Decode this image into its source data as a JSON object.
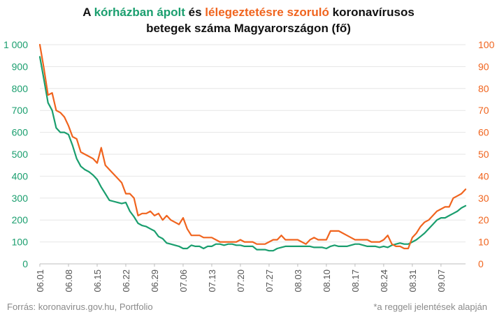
{
  "title": {
    "part1": "A ",
    "green": "kórházban ápolt",
    "part2": " és ",
    "orange": "lélegeztetésre szoruló",
    "part3": " koronavírusos",
    "line2": "betegek száma Magyarországon  (fő)"
  },
  "source": "Forrás: koronavirus.gov.hu, Portfolio",
  "note": "*a reggeli jelentések alapján",
  "colors": {
    "green": "#1a9e6e",
    "orange": "#f0641e",
    "grid": "#e6e6e6",
    "axis": "#bdbdbd"
  },
  "chart_data": {
    "type": "line",
    "x": [
      "06.01",
      "06.02",
      "06.03",
      "06.04",
      "06.05",
      "06.06",
      "06.07",
      "06.08",
      "06.09",
      "06.10",
      "06.11",
      "06.12",
      "06.13",
      "06.14",
      "06.15",
      "06.16",
      "06.17",
      "06.18",
      "06.19",
      "06.20",
      "06.21",
      "06.22",
      "06.23",
      "06.24",
      "06.25",
      "06.26",
      "06.27",
      "06.28",
      "06.29",
      "06.30",
      "07.01",
      "07.02",
      "07.03",
      "07.04",
      "07.05",
      "07.06",
      "07.07",
      "07.08",
      "07.09",
      "07.10",
      "07.11",
      "07.12",
      "07.13",
      "07.14",
      "07.15",
      "07.16",
      "07.17",
      "07.18",
      "07.19",
      "07.20",
      "07.21",
      "07.22",
      "07.23",
      "07.24",
      "07.25",
      "07.26",
      "07.27",
      "07.28",
      "07.29",
      "07.30",
      "07.31",
      "08.01",
      "08.02",
      "08.03",
      "08.04",
      "08.05",
      "08.06",
      "08.07",
      "08.08",
      "08.09",
      "08.10",
      "08.11",
      "08.12",
      "08.13",
      "08.14",
      "08.15",
      "08.16",
      "08.17",
      "08.18",
      "08.19",
      "08.20",
      "08.21",
      "08.22",
      "08.23",
      "08.24",
      "08.25",
      "08.26",
      "08.27",
      "08.28",
      "08.29",
      "08.30",
      "08.31",
      "09.01",
      "09.02",
      "09.03",
      "09.04",
      "09.05",
      "09.06",
      "09.07",
      "09.08",
      "09.09",
      "09.10",
      "09.11",
      "09.12",
      "09.13"
    ],
    "xticks": [
      "06.01",
      "06.08",
      "06.15",
      "06.22",
      "06.29",
      "07.06",
      "07.13",
      "07.20",
      "07.27",
      "08.03",
      "08.10",
      "08.17",
      "08.24",
      "08.31",
      "09.07"
    ],
    "series": [
      {
        "axis": "left",
        "color": "#1a9e6e",
        "values": [
          945,
          840,
          735,
          700,
          620,
          600,
          600,
          590,
          540,
          480,
          445,
          430,
          420,
          405,
          385,
          350,
          320,
          290,
          285,
          280,
          275,
          280,
          240,
          215,
          185,
          175,
          170,
          160,
          150,
          125,
          115,
          95,
          90,
          85,
          80,
          70,
          70,
          85,
          80,
          80,
          70,
          80,
          80,
          90,
          90,
          85,
          90,
          90,
          85,
          85,
          80,
          80,
          80,
          65,
          65,
          65,
          60,
          60,
          70,
          75,
          80,
          80,
          80,
          80,
          80,
          80,
          80,
          75,
          75,
          75,
          70,
          80,
          85,
          80,
          80,
          80,
          85,
          90,
          90,
          85,
          80,
          80,
          80,
          75,
          80,
          75,
          85,
          90,
          95,
          90,
          90,
          100,
          110,
          125,
          140,
          160,
          180,
          200,
          210,
          210,
          220,
          230,
          240,
          255,
          265
        ]
      },
      {
        "axis": "right",
        "color": "#f0641e",
        "values": [
          100,
          89,
          77,
          78,
          70,
          69,
          67,
          63,
          58,
          57,
          51,
          50,
          49,
          48,
          46,
          53,
          45,
          43,
          41,
          39,
          37,
          32,
          32,
          30,
          22,
          23,
          23,
          24,
          22,
          23,
          20,
          22,
          20,
          19,
          18,
          21,
          16,
          13,
          13,
          13,
          12,
          12,
          12,
          11,
          10,
          10,
          10,
          10,
          10,
          11,
          10,
          10,
          10,
          9,
          9,
          9,
          10,
          11,
          11,
          13,
          11,
          11,
          11,
          11,
          10,
          9,
          11,
          12,
          11,
          11,
          11,
          15,
          15,
          15,
          14,
          13,
          12,
          11,
          11,
          11,
          11,
          10,
          10,
          10,
          11,
          13,
          9,
          8,
          8,
          7,
          7,
          12,
          14,
          17,
          19,
          20,
          22,
          24,
          25,
          26,
          26,
          30,
          31,
          32,
          34
        ]
      }
    ],
    "y_left": {
      "ticks": [
        "0",
        "100",
        "200",
        "300",
        "400",
        "500",
        "600",
        "700",
        "800",
        "900",
        "1 000"
      ],
      "ylim": [
        0,
        1000
      ]
    },
    "y_right": {
      "ticks": [
        "0",
        "10",
        "20",
        "30",
        "40",
        "50",
        "60",
        "70",
        "80",
        "90",
        "100"
      ],
      "ylim": [
        0,
        100
      ]
    },
    "grid": true
  }
}
